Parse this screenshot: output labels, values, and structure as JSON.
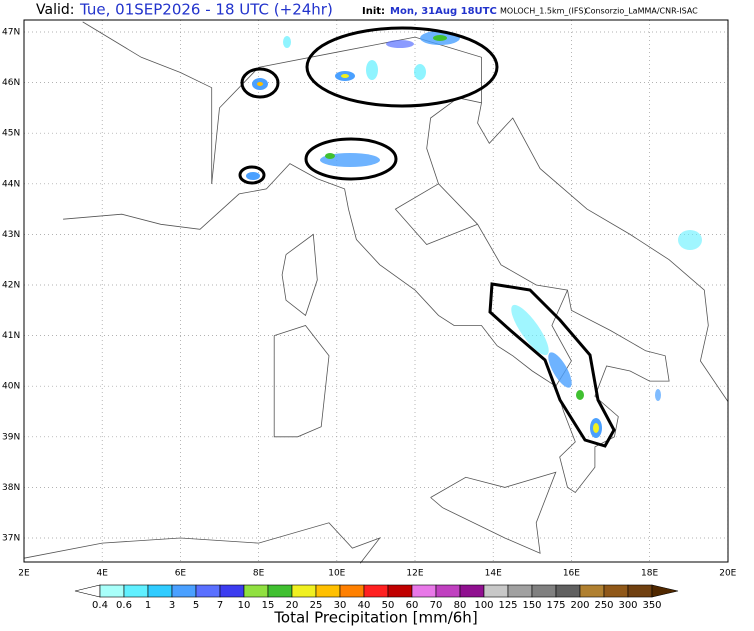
{
  "header": {
    "valid_label": "Valid:",
    "valid_time": "Tue, 01SEP2026 - 18 UTC (+24hr)",
    "init_label": "Init:",
    "init_time": "Mon, 31Aug 18UTC",
    "model": "MOLOCH_1.5km_(IFS)",
    "producer": "Consorzio_LaMMA/CNR-ISAC"
  },
  "map": {
    "lat_labels": [
      "47N",
      "46N",
      "45N",
      "44N",
      "43N",
      "42N",
      "41N",
      "40N",
      "39N",
      "38N",
      "37N"
    ],
    "lon_labels": [
      "2E",
      "4E",
      "6E",
      "8E",
      "10E",
      "12E",
      "14E",
      "16E",
      "18E",
      "20E"
    ]
  },
  "colorbar": {
    "title": "Total Precipitation [mm/6h]",
    "labels": [
      "0.4",
      "0.6",
      "1",
      "3",
      "5",
      "7",
      "10",
      "15",
      "20",
      "25",
      "30",
      "40",
      "50",
      "60",
      "70",
      "80",
      "100",
      "125",
      "150",
      "175",
      "200",
      "250",
      "300",
      "350"
    ],
    "colors": [
      "#ffffff",
      "#a8fffa",
      "#60f0ff",
      "#30ccff",
      "#4aa0ff",
      "#5a70ff",
      "#3c3cf0",
      "#90e040",
      "#40c030",
      "#f0f020",
      "#ffc000",
      "#ff8000",
      "#ff2020",
      "#c00000",
      "#e878e8",
      "#c040c0",
      "#901090",
      "#c8c8c8",
      "#a0a0a0",
      "#808080",
      "#606060",
      "#b08030",
      "#905818",
      "#704010",
      "#502800"
    ]
  }
}
